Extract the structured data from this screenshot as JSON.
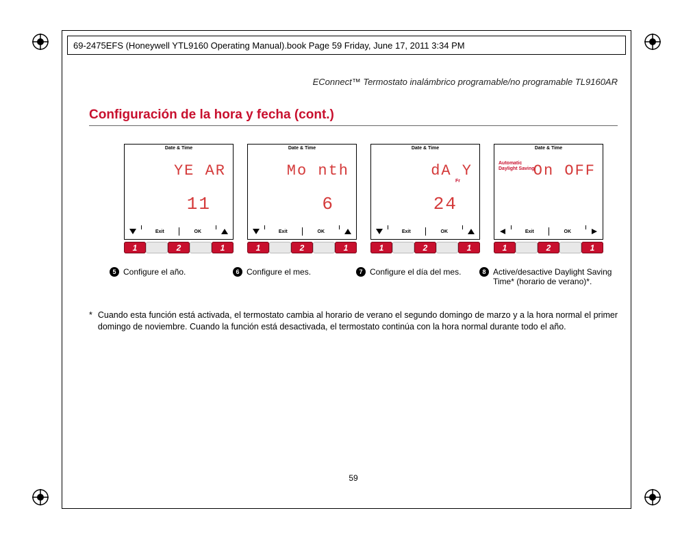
{
  "header": "69-2475EFS (Honeywell YTL9160 Operating Manual).book  Page 59  Friday, June 17, 2011  3:34 PM",
  "subheader": "EConnect™ Termostato inalámbrico programable/no programable TL9160AR",
  "section_title": "Configuración de la hora y fecha (cont.)",
  "screens": [
    {
      "header": "Date & Time",
      "mode": "",
      "line1": "YE AR",
      "sub": "",
      "value": "11",
      "left_arrow": "down",
      "right_arrow": "up",
      "btn": [
        "1",
        "",
        "2",
        "",
        "1"
      ]
    },
    {
      "header": "Date & Time",
      "mode": "",
      "line1": "Mo nth",
      "sub": "",
      "value": "6",
      "left_arrow": "down",
      "right_arrow": "up",
      "btn": [
        "1",
        "",
        "2",
        "",
        "1"
      ]
    },
    {
      "header": "Date & Time",
      "mode": "",
      "line1": "dA Y",
      "sub": "Fr",
      "value": "24",
      "left_arrow": "down",
      "right_arrow": "up",
      "btn": [
        "1",
        "",
        "2",
        "",
        "1"
      ]
    },
    {
      "header": "Date & Time",
      "mode": "Automatic\nDaylight Saving",
      "line1": "On OFF",
      "sub": "",
      "value": "",
      "left_arrow": "left",
      "right_arrow": "right",
      "btn": [
        "1",
        "",
        "2",
        "",
        "1"
      ]
    }
  ],
  "exit_label": "Exit",
  "ok_label": "OK",
  "captions": [
    {
      "n": "5",
      "text": "Configure el año."
    },
    {
      "n": "6",
      "text": "Configure el mes."
    },
    {
      "n": "7",
      "text": "Configure el día del mes."
    },
    {
      "n": "8",
      "text": "Active/desactive Daylight Saving Time* (horario de verano)*."
    }
  ],
  "footnote_ast": "*",
  "footnote": "Cuando esta función está activada, el termostato cambia al horario de verano el segundo domingo de marzo y a la hora normal el primer domingo de noviembre. Cuando la función está desactivada, el termostato continúa con la hora normal durante todo el año.",
  "page_num": "59"
}
